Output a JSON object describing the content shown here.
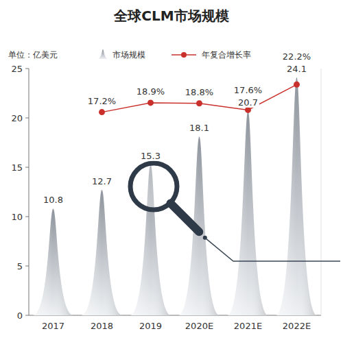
{
  "chart_data": {
    "type": "bar",
    "title": "全球CLM市场规模",
    "ylabel": "单位：亿美元",
    "categories": [
      "2017",
      "2018",
      "2019",
      "2020E",
      "2021E",
      "2022E"
    ],
    "series": [
      {
        "name": "市场规模",
        "type": "bar",
        "color": "#8e949c",
        "values": [
          10.8,
          12.7,
          15.3,
          18.1,
          20.7,
          24.1
        ]
      },
      {
        "name": "年复合增长率",
        "type": "line",
        "color": "#c9302c",
        "marker": "circle",
        "axis": "y2",
        "values": [
          null,
          17.2,
          18.9,
          18.8,
          17.6,
          22.2
        ],
        "value_labels": [
          null,
          "17.2%",
          "18.9%",
          "18.8%",
          "17.6%",
          "22.2%"
        ]
      }
    ],
    "ylim": [
      0,
      25
    ],
    "yticks": [
      0,
      5,
      10,
      15,
      20,
      25
    ],
    "y2lim": [
      -19.6,
      25.1
    ],
    "grid": false,
    "legend": "top",
    "data_labels": true,
    "tick_labels": "y"
  }
}
